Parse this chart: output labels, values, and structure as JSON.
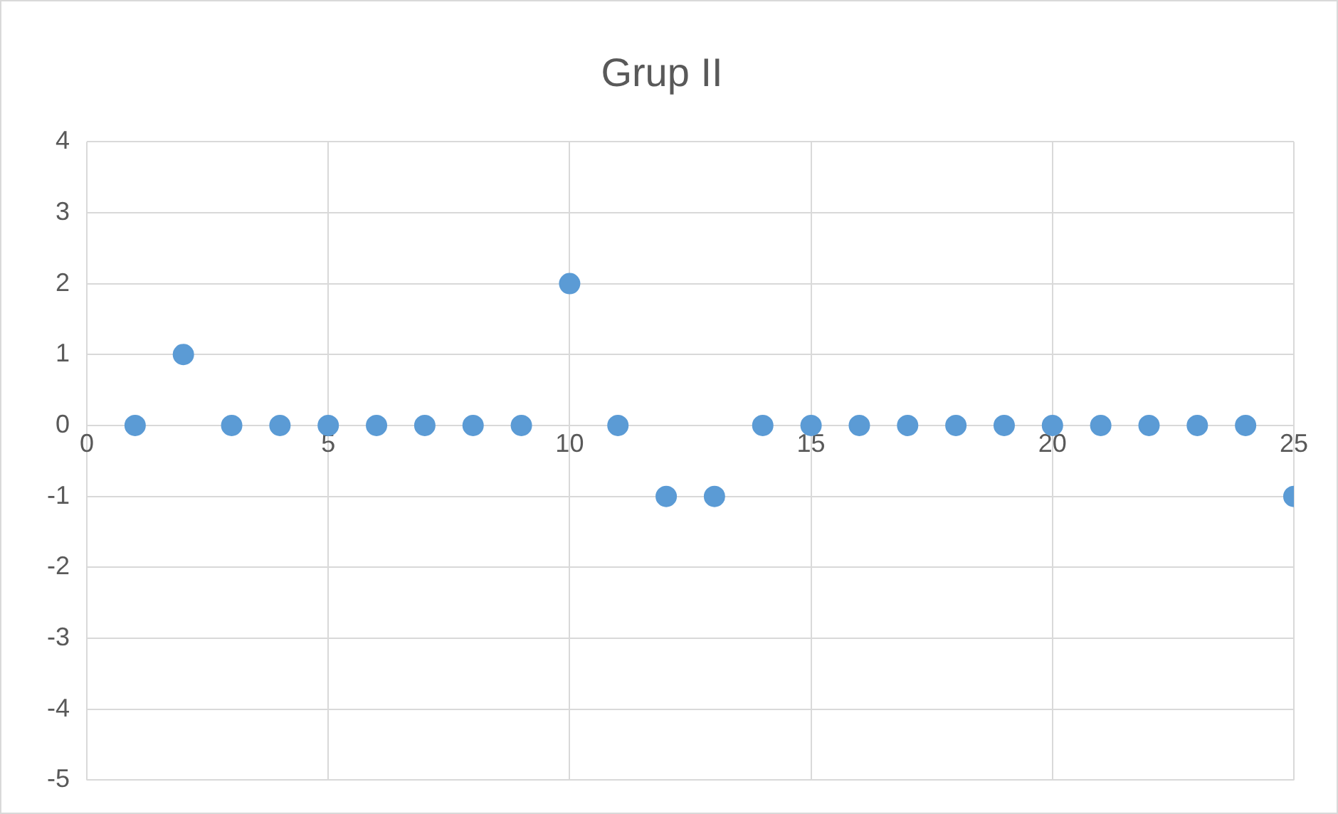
{
  "chart_data": {
    "type": "scatter",
    "title": "Grup II",
    "x": [
      1,
      2,
      3,
      4,
      5,
      6,
      7,
      8,
      9,
      10,
      11,
      12,
      13,
      14,
      15,
      16,
      17,
      18,
      19,
      20,
      21,
      22,
      23,
      24,
      25
    ],
    "series": [
      {
        "color": "#5b9bd5",
        "values": [
          0,
          1,
          0,
          0,
          0,
          0,
          0,
          0,
          0,
          2,
          0,
          -1,
          -1,
          0,
          0,
          0,
          0,
          0,
          0,
          0,
          0,
          0,
          0,
          0,
          -1
        ]
      }
    ],
    "xlim": [
      0,
      25
    ],
    "xticks": [
      0,
      5,
      10,
      15,
      20,
      25
    ],
    "ylim": [
      -5,
      4
    ],
    "yticks": [
      -5,
      -4,
      -3,
      -2,
      -1,
      0,
      1,
      2,
      3,
      4
    ],
    "grid": true,
    "legend": false,
    "marker": "circle"
  }
}
